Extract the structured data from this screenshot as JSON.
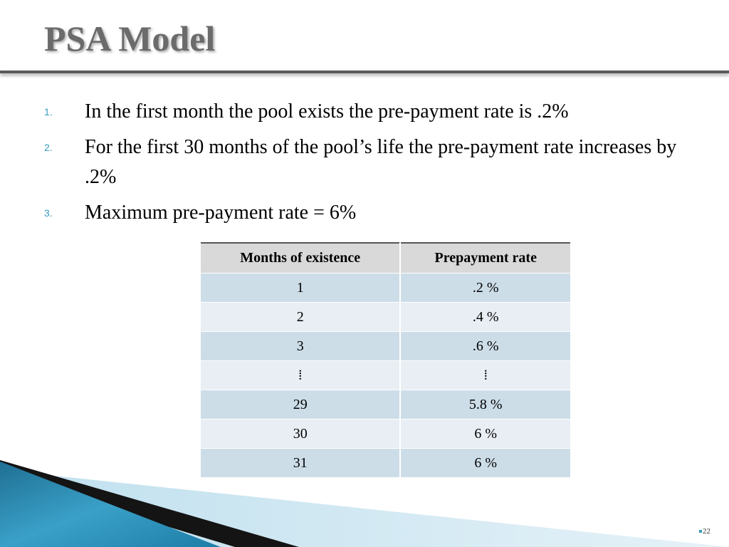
{
  "slide": {
    "title": "PSA Model",
    "page_number": "22"
  },
  "points": [
    {
      "number": "1.",
      "text": "In the first month the pool exists the pre-payment rate is .2%"
    },
    {
      "number": "2.",
      "text": "For the first 30 months of the pool’s life the pre-payment rate increases by .2%"
    },
    {
      "number": "3.",
      "text": "Maximum pre-payment rate = 6%"
    }
  ],
  "table": {
    "headers": [
      "Months of existence",
      "Prepayment rate"
    ],
    "rows": [
      [
        "1",
        ".2 %"
      ],
      [
        "2",
        ".4 %"
      ],
      [
        "3",
        ".6 %"
      ],
      [
        "⁞",
        "⁞"
      ],
      [
        "29",
        "5.8 %"
      ],
      [
        "30",
        "6 %"
      ],
      [
        "31",
        "6 %"
      ]
    ]
  },
  "colors": {
    "accent": "#3a9cc0",
    "title": "#6b6b6b",
    "header_bg": "#d9d9d9",
    "row_dark": "#ccdde8",
    "row_light": "#e8eef4"
  }
}
